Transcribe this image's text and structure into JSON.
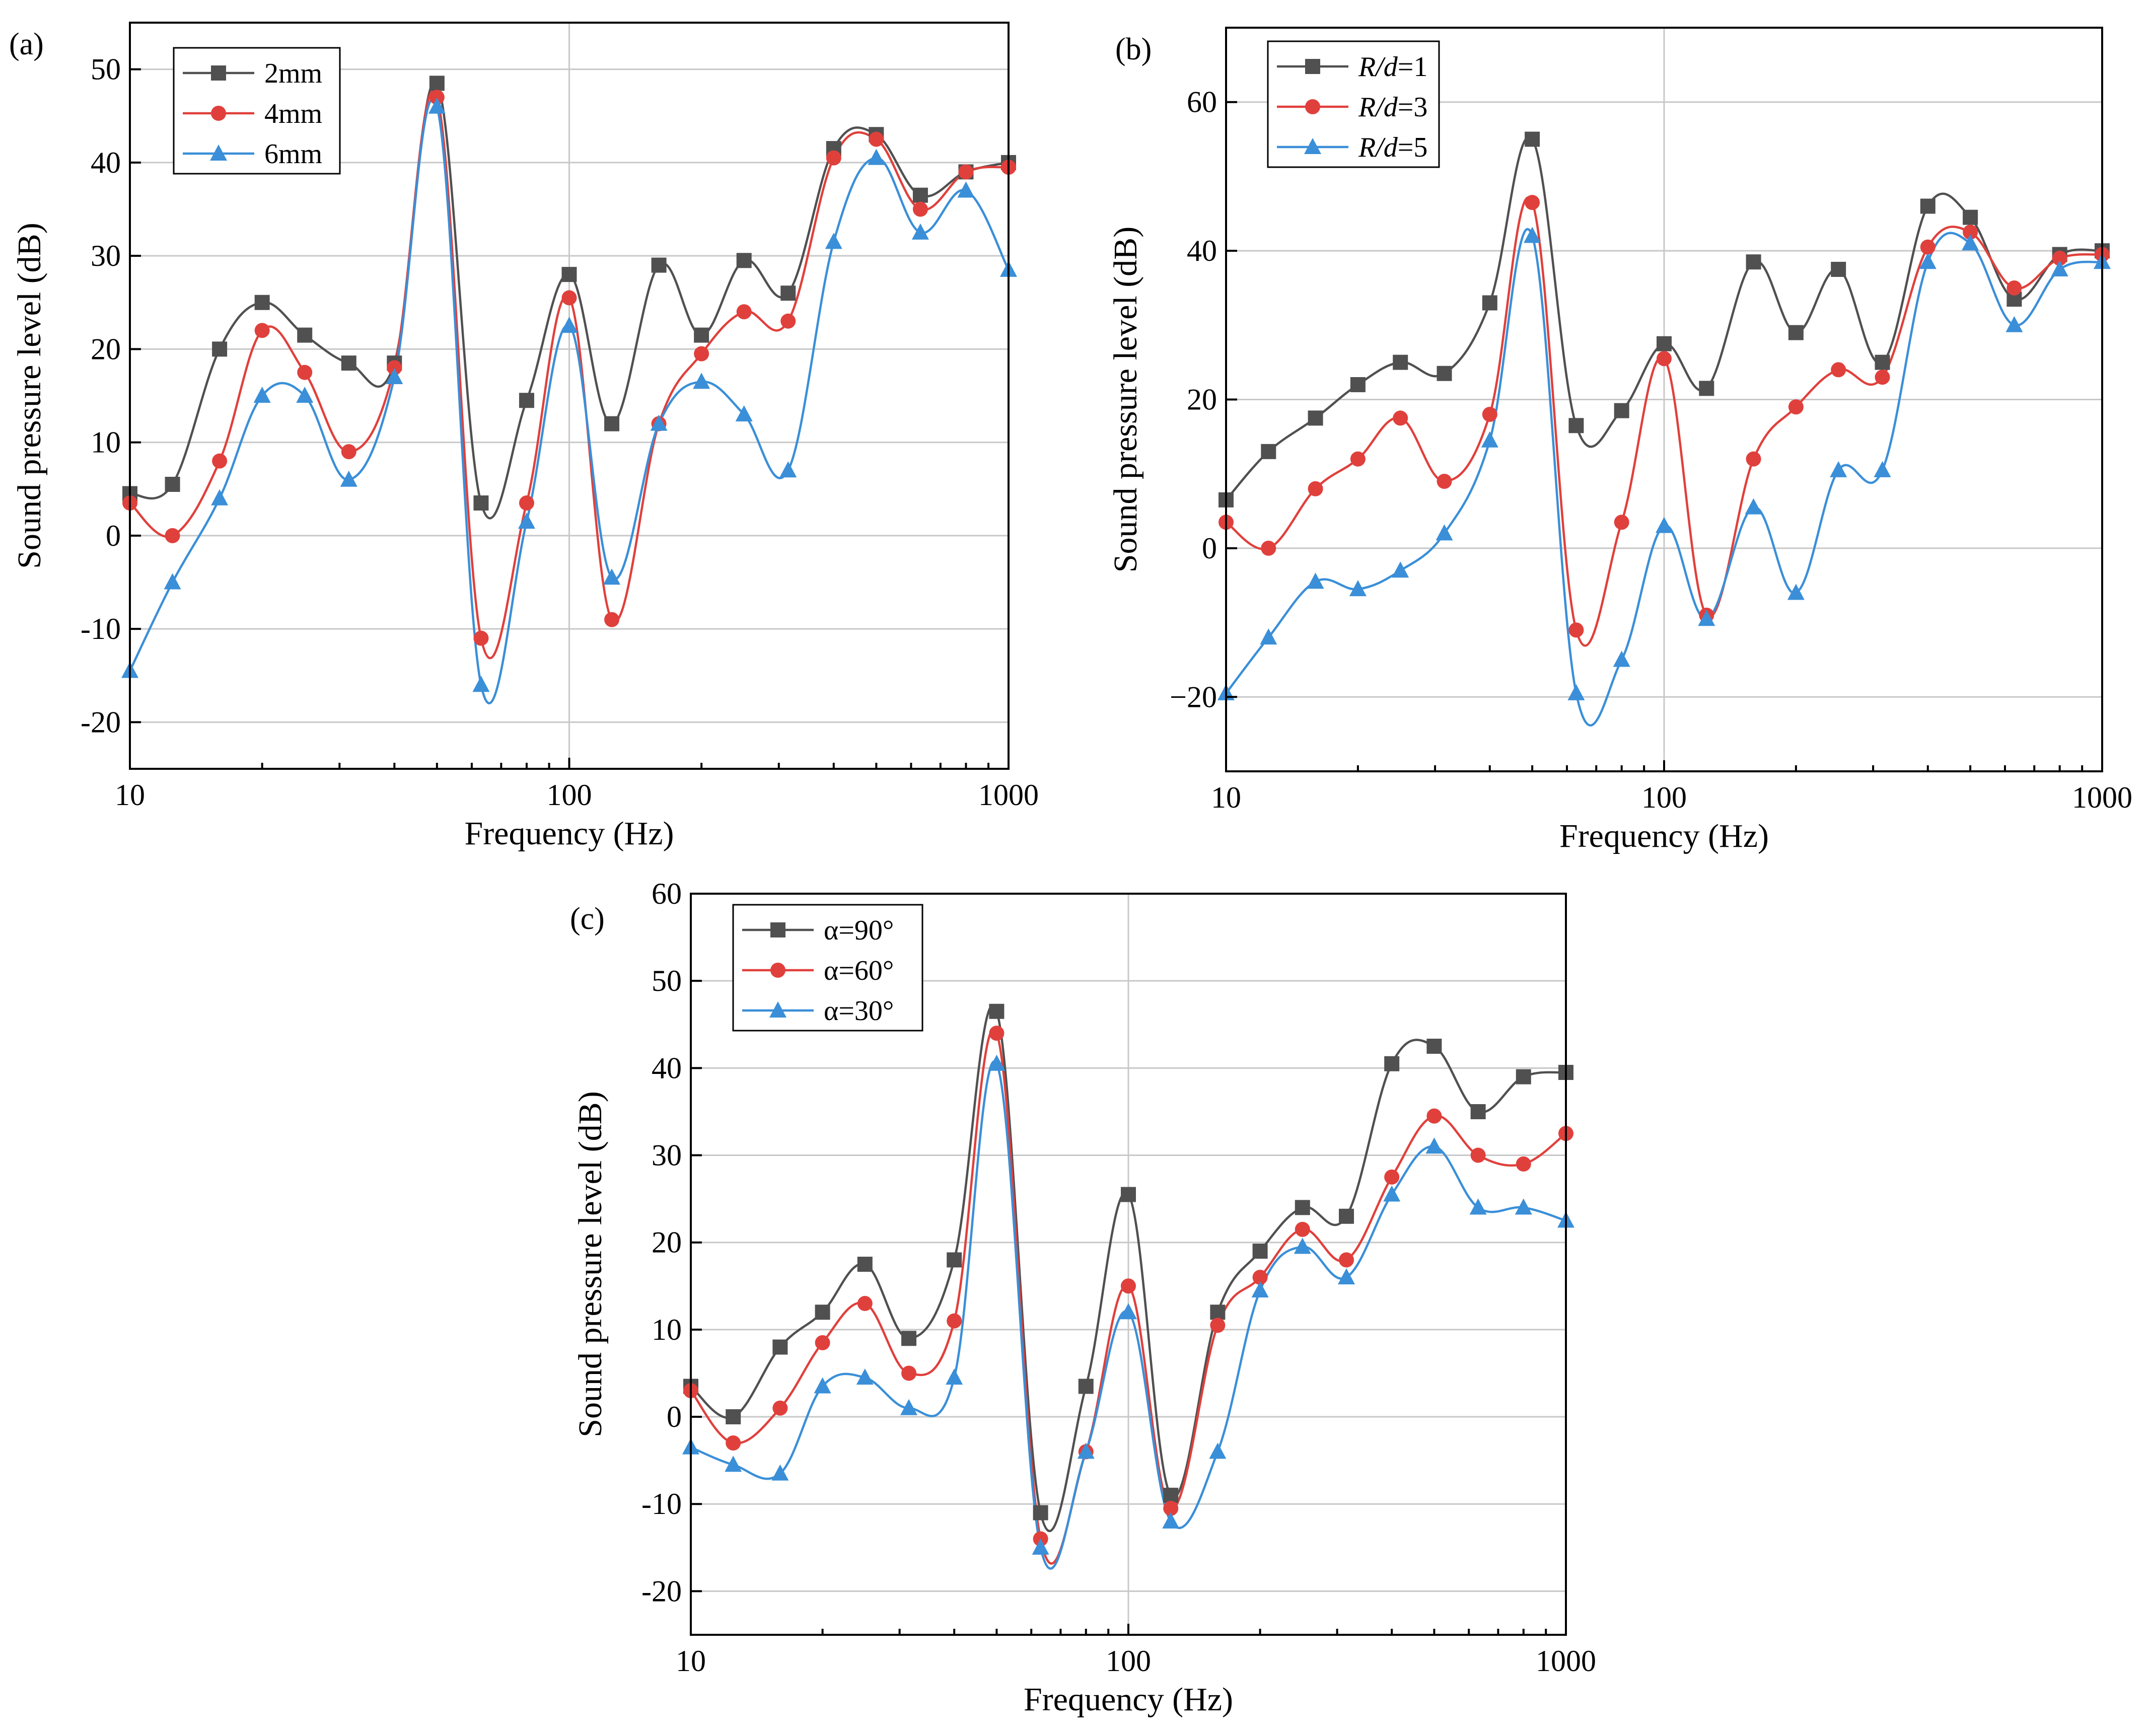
{
  "chart_data": [
    {
      "type": "line",
      "panel_label": "(a)",
      "xscale": "log",
      "xlim": [
        10,
        1000
      ],
      "ylim": [
        -25,
        55
      ],
      "xticks": [
        10,
        100,
        1000
      ],
      "xtick_labels": [
        "10",
        "100",
        "1000"
      ],
      "yticks": [
        -20,
        -10,
        0,
        10,
        20,
        30,
        40,
        50
      ],
      "ytick_labels": [
        "-20",
        "-10",
        "0",
        "10",
        "20",
        "30",
        "40",
        "50"
      ],
      "xlabel": "Frequency (Hz)",
      "ylabel": "Sound pressure level (dB)",
      "legend_position": "top-left",
      "series": [
        {
          "name": "2mm",
          "color": "#505050",
          "marker": "square",
          "x": [
            10,
            12.5,
            16,
            20,
            25,
            31.5,
            40,
            50,
            63,
            80,
            100,
            125,
            160,
            200,
            250,
            315,
            400,
            500,
            630,
            800,
            1000
          ],
          "y": [
            4.5,
            5.5,
            20,
            25,
            21.5,
            18.5,
            18.5,
            48.5,
            3.5,
            14.5,
            28,
            12,
            29,
            21.5,
            29.5,
            26,
            41.5,
            43,
            36.5,
            39,
            40
          ]
        },
        {
          "name": "4mm",
          "color": "#e0403c",
          "marker": "circle",
          "x": [
            10,
            12.5,
            16,
            20,
            25,
            31.5,
            40,
            50,
            63,
            80,
            100,
            125,
            160,
            200,
            250,
            315,
            400,
            500,
            630,
            800,
            1000
          ],
          "y": [
            3.5,
            0,
            8,
            22,
            17.5,
            9,
            18,
            47,
            -11,
            3.5,
            25.5,
            -9,
            12,
            19.5,
            24,
            23,
            40.5,
            42.5,
            35,
            39,
            39.5
          ]
        },
        {
          "name": "6mm",
          "color": "#3a8fd8",
          "marker": "triangle",
          "x": [
            10,
            12.5,
            16,
            20,
            25,
            31.5,
            40,
            50,
            63,
            80,
            100,
            125,
            160,
            200,
            250,
            315,
            400,
            500,
            630,
            800,
            1000
          ],
          "y": [
            -14.5,
            -5,
            4,
            15,
            15,
            6,
            17,
            46,
            -16,
            1.5,
            22.5,
            -4.5,
            12,
            16.5,
            13,
            7,
            31.5,
            40.5,
            32.5,
            37,
            28.5
          ]
        }
      ]
    },
    {
      "type": "line",
      "panel_label": "(b)",
      "xscale": "log",
      "xlim": [
        10,
        1000
      ],
      "ylim": [
        -30,
        70
      ],
      "xticks": [
        10,
        100,
        1000
      ],
      "xtick_labels": [
        "10",
        "100",
        "1000"
      ],
      "yticks": [
        -20,
        0,
        20,
        40,
        60
      ],
      "ytick_labels": [
        "−20",
        "0",
        "20",
        "40",
        "60"
      ],
      "xlabel": "Frequency (Hz)",
      "ylabel": "Sound pressure level (dB)",
      "legend_position": "top-left",
      "series": [
        {
          "name": "R/d=1",
          "label_italic": "R/d",
          "label_suffix": "=1",
          "color": "#505050",
          "marker": "square",
          "x": [
            10,
            12.5,
            16,
            20,
            25,
            31.5,
            40,
            50,
            63,
            80,
            100,
            125,
            160,
            200,
            250,
            315,
            400,
            500,
            630,
            800,
            1000
          ],
          "y": [
            6.5,
            13,
            17.5,
            22,
            25,
            23.5,
            33,
            55,
            16.5,
            18.5,
            27.5,
            21.5,
            38.5,
            29,
            37.5,
            25,
            46,
            44.5,
            33.5,
            39.5,
            40
          ]
        },
        {
          "name": "R/d=3",
          "label_italic": "R/d",
          "label_suffix": "=3",
          "color": "#e0403c",
          "marker": "circle",
          "x": [
            10,
            12.5,
            16,
            20,
            25,
            31.5,
            40,
            50,
            63,
            80,
            100,
            125,
            160,
            200,
            250,
            315,
            400,
            500,
            630,
            800,
            1000
          ],
          "y": [
            3.5,
            0,
            8,
            12,
            17.5,
            9,
            18,
            46.5,
            -11,
            3.5,
            25.5,
            -9,
            12,
            19,
            24,
            23,
            40.5,
            42.5,
            35,
            39,
            39.5
          ]
        },
        {
          "name": "R/d=5",
          "label_italic": "R/d",
          "label_suffix": "=5",
          "color": "#3a8fd8",
          "marker": "triangle",
          "x": [
            10,
            12.5,
            16,
            20,
            25,
            31.5,
            40,
            50,
            63,
            80,
            100,
            125,
            160,
            200,
            250,
            315,
            400,
            500,
            630,
            800,
            1000
          ],
          "y": [
            -19.5,
            -12,
            -4.5,
            -5.5,
            -3,
            2,
            14.5,
            42,
            -19.5,
            -15,
            3,
            -9.5,
            5.5,
            -6,
            10.5,
            10.5,
            38.5,
            41,
            30,
            37.5,
            38.5
          ]
        }
      ]
    },
    {
      "type": "line",
      "panel_label": "(c)",
      "xscale": "log",
      "xlim": [
        10,
        1000
      ],
      "ylim": [
        -25,
        60
      ],
      "xticks": [
        10,
        100,
        1000
      ],
      "xtick_labels": [
        "10",
        "100",
        "1000"
      ],
      "yticks": [
        -20,
        -10,
        0,
        10,
        20,
        30,
        40,
        50,
        60
      ],
      "ytick_labels": [
        "-20",
        "-10",
        "0",
        "10",
        "20",
        "30",
        "40",
        "50",
        "60"
      ],
      "xlabel": "Frequency (Hz)",
      "ylabel": "Sound pressure level (dB)",
      "legend_position": "top-left",
      "series": [
        {
          "name": "α=90°",
          "color": "#505050",
          "marker": "square",
          "x": [
            10,
            12.5,
            16,
            20,
            25,
            31.5,
            40,
            50,
            63,
            80,
            100,
            125,
            160,
            200,
            250,
            315,
            400,
            500,
            630,
            800,
            1000
          ],
          "y": [
            3.5,
            0,
            8,
            12,
            17.5,
            9,
            18,
            46.5,
            -11,
            3.5,
            25.5,
            -9,
            12,
            19,
            24,
            23,
            40.5,
            42.5,
            35,
            39,
            39.5
          ]
        },
        {
          "name": "α=60°",
          "color": "#e0403c",
          "marker": "circle",
          "x": [
            10,
            12.5,
            16,
            20,
            25,
            31.5,
            40,
            50,
            63,
            80,
            100,
            125,
            160,
            200,
            250,
            315,
            400,
            500,
            630,
            800,
            1000
          ],
          "y": [
            3,
            -3,
            1,
            8.5,
            13,
            5,
            11,
            44,
            -14,
            -4,
            15,
            -10.5,
            10.5,
            16,
            21.5,
            18,
            27.5,
            34.5,
            30,
            29,
            32.5
          ]
        },
        {
          "name": "α=30°",
          "color": "#3a8fd8",
          "marker": "triangle",
          "x": [
            10,
            12.5,
            16,
            20,
            25,
            31.5,
            40,
            50,
            63,
            80,
            100,
            125,
            160,
            200,
            250,
            315,
            400,
            500,
            630,
            800,
            1000
          ],
          "y": [
            -3.5,
            -5.5,
            -6.5,
            3.5,
            4.5,
            1,
            4.5,
            40.5,
            -15,
            -4,
            12,
            -12,
            -4,
            14.5,
            19.5,
            16,
            25.5,
            31,
            24,
            24,
            22.5
          ]
        }
      ]
    }
  ]
}
